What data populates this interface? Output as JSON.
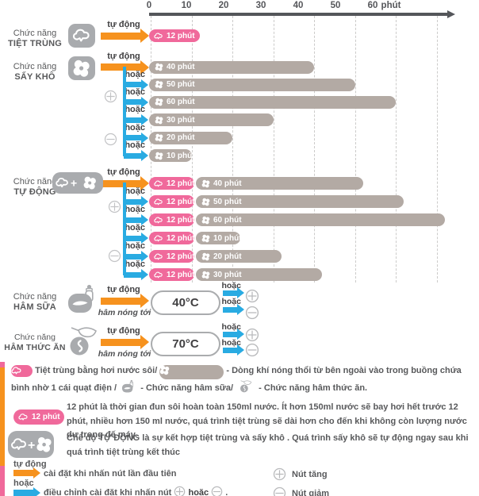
{
  "labels": {
    "auto": "tự động",
    "or": "hoặc",
    "warm_to": "hâm nóng tới"
  },
  "axis": {
    "ticks": [
      "0",
      "10",
      "20",
      "30",
      "40",
      "50",
      "60"
    ],
    "unit": "phút"
  },
  "colors": {
    "pink": "#f0699b",
    "orange": "#f6921e",
    "blue": "#29abe2",
    "bar_gray": "#b3aaa4",
    "icon_gray": "#a9abae",
    "text_dark": "#58595b"
  },
  "chart_data": {
    "type": "bar",
    "unit": "phút",
    "xlabel": "phút",
    "x_ticks": [
      0,
      10,
      20,
      30,
      40,
      50,
      60
    ],
    "xlim": [
      0,
      74
    ],
    "grid": "dashed-vertical",
    "sections": [
      {
        "name": "Chức năng TIỆT TRÙNG",
        "rows": [
          {
            "trigger": "tự động",
            "sterilize_min": 12,
            "dry_min": null
          }
        ]
      },
      {
        "name": "Chức năng SẤY KHÔ",
        "rows": [
          {
            "trigger": "tự động",
            "sterilize_min": null,
            "dry_min": 40
          },
          {
            "trigger": "hoặc",
            "sterilize_min": null,
            "dry_min": 50
          },
          {
            "trigger": "hoặc",
            "sterilize_min": null,
            "dry_min": 60
          },
          {
            "trigger": "hoặc",
            "sterilize_min": null,
            "dry_min": 30
          },
          {
            "trigger": "hoặc",
            "sterilize_min": null,
            "dry_min": 20
          },
          {
            "trigger": "hoặc",
            "sterilize_min": null,
            "dry_min": 10
          }
        ]
      },
      {
        "name": "Chức năng TỰ ĐỘNG",
        "rows": [
          {
            "trigger": "tự động",
            "sterilize_min": 12,
            "dry_min": 40
          },
          {
            "trigger": "hoặc",
            "sterilize_min": 12,
            "dry_min": 50
          },
          {
            "trigger": "hoặc",
            "sterilize_min": 12,
            "dry_min": 60
          },
          {
            "trigger": "hoặc",
            "sterilize_min": 12,
            "dry_min": 10
          },
          {
            "trigger": "hoặc",
            "sterilize_min": 12,
            "dry_min": 20
          },
          {
            "trigger": "hoặc",
            "sterilize_min": 12,
            "dry_min": 30
          }
        ]
      },
      {
        "name": "Chức năng HÂM SỮA",
        "temp": "40°C"
      },
      {
        "name": "Chức năng HÂM THỨC ĂN",
        "temp": "70°C"
      }
    ]
  },
  "sections": {
    "tiet_trung": {
      "line1": "Chức năng",
      "line2": "TIỆT TRÙNG"
    },
    "say_kho": {
      "line1": "Chức năng",
      "line2": "SẤY KHÔ"
    },
    "tu_dong": {
      "line1": "Chức năng",
      "line2": "TỰ ĐỘNG"
    },
    "ham_sua": {
      "line1": "Chức năng",
      "line2": "HÂM SỮA",
      "auto": "tự động",
      "warm_to": "hâm nóng tới",
      "temp": "40°C",
      "or1": "hoặc",
      "or2": "hoặc"
    },
    "ham_thuc_an": {
      "line1": "Chức năng",
      "line2": "HÂM THỨC ĂN",
      "auto": "tự động",
      "warm_to": "hâm nóng tới",
      "temp": "70°C",
      "or1": "hoặc",
      "or2": "hoặc"
    }
  },
  "legend": {
    "item1": {
      "pre": "Tiệt trùng bằng hơi nước sôi/",
      "mid": "-  Dòng khí nóng thổi từ bên ngoài vào trong buồng chứa bình nhờ 1 cái quạt điện /",
      "milk": "- Chức năng hâm sữa/",
      "food": "- Chức năng hâm thức ăn."
    },
    "item2": {
      "pill": "12 phút",
      "text": "12 phút là thời gian đun sôi hoàn toàn 150ml nước. Ít hơn 150ml nước sẽ bay hơi hết trước 12 phút, nhiều hơn 150 ml nước, quá trình tiệt trùng sẽ dài hơn cho đến khi không còn lượng nước dư trong đế máy."
    },
    "item3": {
      "text": "Chế độ TỰ ĐỘNG là sự kết hợp tiệt trùng và sấy khô .  Quá trình sấy khô sẽ tự động ngay sau khi quá trình tiệt trùng kết thúc"
    },
    "auto_label": "tự động",
    "auto_text": "cài đặt khi nhấn nút lần đầu tiên",
    "or_label": "hoặc",
    "or_text": "điều chỉnh cài đặt khi nhấn nút",
    "or_text2": "hoặc",
    "or_text3": ".",
    "plus_label": "Nút tăng",
    "minus_label": "Nút giảm"
  }
}
